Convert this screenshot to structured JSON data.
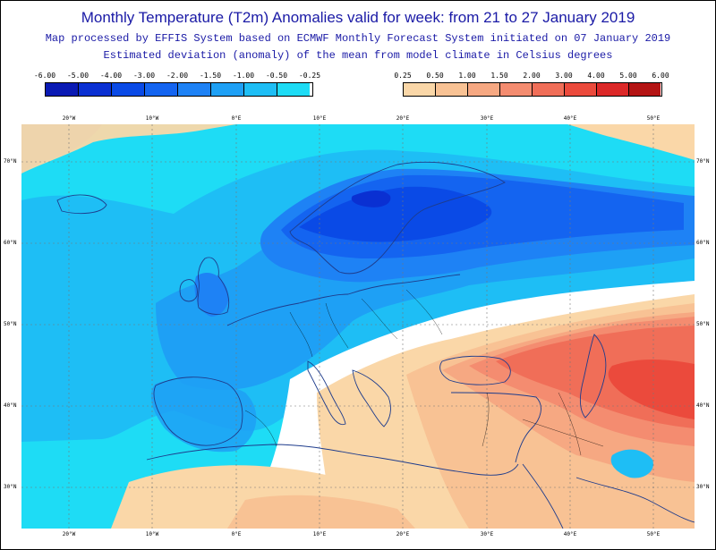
{
  "header": {
    "title": "Monthly Temperature (T2m) Anomalies valid for week: from 21 to 27 January 2019",
    "subtitle1": "Map processed by EFFIS System based on ECMWF Monthly Forecast System initiated on 07 January 2019",
    "subtitle2": "Estimated deviation (anomaly) of the mean from model climate in Celsius degrees"
  },
  "legend": {
    "cold": {
      "labels": [
        "-6.00",
        "-5.00",
        "-4.00",
        "-3.00",
        "-2.00",
        "-1.50",
        "-1.00",
        "-0.50",
        "-0.25"
      ],
      "colors": [
        "#0a1ab4",
        "#0a30d2",
        "#0a4ae6",
        "#1464f0",
        "#1e82f5",
        "#1ea0f5",
        "#1ebef5",
        "#1edcf5"
      ]
    },
    "warm": {
      "labels": [
        "0.25",
        "0.50",
        "1.00",
        "1.50",
        "2.00",
        "3.00",
        "4.00",
        "5.00",
        "6.00"
      ],
      "colors": [
        "#fad7a8",
        "#f8c294",
        "#f6a882",
        "#f48c70",
        "#f06e58",
        "#eb4a3c",
        "#dc2828",
        "#b41414"
      ]
    }
  },
  "axes": {
    "lon_labels": [
      "20°W",
      "10°W",
      "0°E",
      "10°E",
      "20°E",
      "30°E",
      "40°E",
      "50°E"
    ],
    "lat_labels": [
      "70°N",
      "60°N",
      "50°N",
      "40°N",
      "30°N"
    ]
  },
  "colors": {
    "coast": "#1e3c8c",
    "grid": "#777777",
    "border": "#000000"
  }
}
